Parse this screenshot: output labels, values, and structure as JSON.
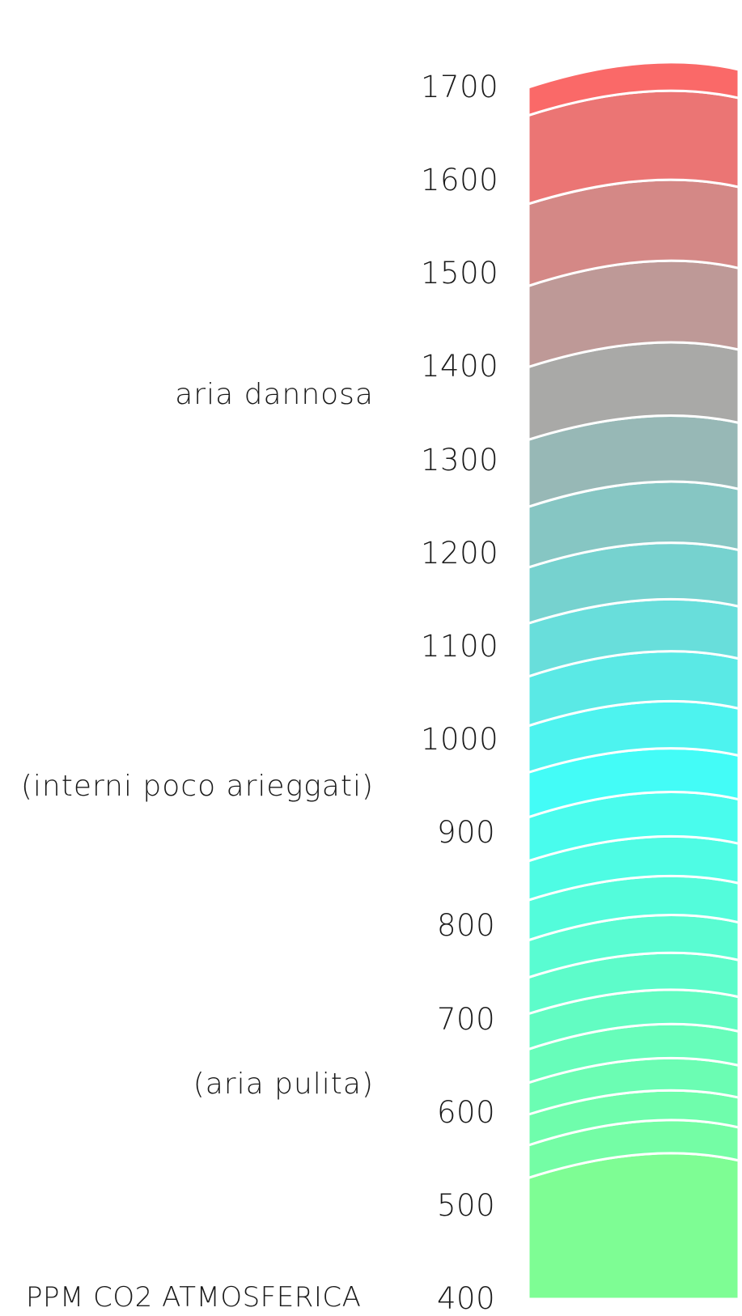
{
  "chart_data": {
    "type": "area",
    "title": "",
    "ylabel": "PPM CO2 ATMOSFERICA",
    "ylim": [
      400,
      1700
    ],
    "ticks": [
      "1700",
      "1600",
      "1500",
      "1400",
      "1300",
      "1200",
      "1100",
      "1000",
      "900",
      "800",
      "700",
      "600",
      "500",
      "400"
    ],
    "tick_values": [
      1700,
      1600,
      1500,
      1400,
      1300,
      1200,
      1100,
      1000,
      900,
      800,
      700,
      600,
      500,
      400
    ],
    "zone_labels": [
      {
        "text": "aria dannosa",
        "value": 1370
      },
      {
        "text": "(interni poco arieggati)",
        "value": 950
      },
      {
        "text": "(aria pulita)",
        "value": 630
      }
    ],
    "band_boundaries": [
      400,
      530,
      565,
      598,
      632,
      668,
      706,
      745,
      785,
      828,
      870,
      917,
      965,
      1015,
      1068,
      1125,
      1185,
      1250,
      1322,
      1400,
      1487,
      1575,
      1670,
      1700
    ],
    "color_bottom": "#86fd86",
    "color_mid": "#42fcf8",
    "color_top": "#fe6665"
  }
}
